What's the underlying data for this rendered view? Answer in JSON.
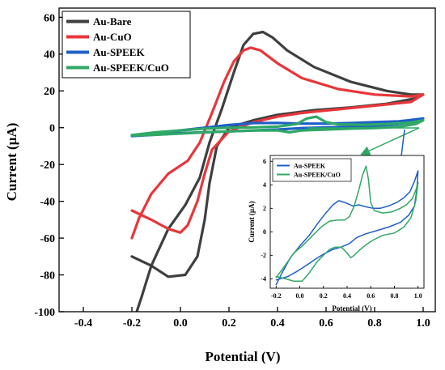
{
  "chart_data": [
    {
      "type": "line",
      "xlabel": "Potential (V)",
      "ylabel": "Current (µA)",
      "xlim": [
        -0.5,
        1.05
      ],
      "ylim": [
        -100,
        65
      ],
      "xticks": [
        "-0.4",
        "-0.2",
        "0.0",
        "0.2",
        "0.4",
        "0.6",
        "0.8",
        "1.0"
      ],
      "yticks": [
        "-100",
        "-80",
        "-60",
        "-40",
        "-20",
        "0",
        "20",
        "40",
        "60"
      ],
      "xtick_values": [
        -0.4,
        -0.2,
        0.0,
        0.2,
        0.4,
        0.6,
        0.8,
        1.0
      ],
      "ytick_values": [
        -100,
        -80,
        -60,
        -40,
        -20,
        0,
        20,
        40,
        60
      ],
      "legend_position": "top-left",
      "series": [
        {
          "name": "Au-Bare",
          "color": "#3f3f3f",
          "points": [
            [
              -0.18,
              -100
            ],
            [
              -0.16,
              -92
            ],
            [
              -0.12,
              -75
            ],
            [
              -0.05,
              -55
            ],
            [
              0.02,
              -42
            ],
            [
              0.08,
              -27
            ],
            [
              0.12,
              -8
            ],
            [
              0.17,
              10
            ],
            [
              0.22,
              30
            ],
            [
              0.26,
              45
            ],
            [
              0.3,
              51
            ],
            [
              0.34,
              52
            ],
            [
              0.38,
              49
            ],
            [
              0.44,
              42
            ],
            [
              0.55,
              33
            ],
            [
              0.7,
              25
            ],
            [
              0.85,
              20
            ],
            [
              0.95,
              18
            ],
            [
              1.0,
              18
            ],
            [
              0.97,
              16
            ],
            [
              0.85,
              13
            ],
            [
              0.7,
              11
            ],
            [
              0.55,
              9.5
            ],
            [
              0.4,
              7
            ],
            [
              0.3,
              4
            ],
            [
              0.2,
              0
            ],
            [
              0.15,
              -10
            ],
            [
              0.12,
              -30
            ],
            [
              0.1,
              -50
            ],
            [
              0.07,
              -70
            ],
            [
              0.02,
              -80
            ],
            [
              -0.05,
              -81
            ],
            [
              -0.12,
              -75
            ],
            [
              -0.2,
              -70
            ]
          ]
        },
        {
          "name": "Au-CuO",
          "color": "#e8363a",
          "points": [
            [
              -0.2,
              -60
            ],
            [
              -0.17,
              -49
            ],
            [
              -0.12,
              -36
            ],
            [
              -0.05,
              -25
            ],
            [
              0.03,
              -18
            ],
            [
              0.08,
              -8
            ],
            [
              0.13,
              8
            ],
            [
              0.18,
              25
            ],
            [
              0.22,
              36
            ],
            [
              0.26,
              42
            ],
            [
              0.29,
              43.5
            ],
            [
              0.33,
              42
            ],
            [
              0.4,
              35
            ],
            [
              0.5,
              27
            ],
            [
              0.65,
              21
            ],
            [
              0.8,
              18
            ],
            [
              0.95,
              17
            ],
            [
              1.0,
              18
            ],
            [
              0.95,
              14
            ],
            [
              0.8,
              12
            ],
            [
              0.65,
              10
            ],
            [
              0.5,
              8
            ],
            [
              0.4,
              6
            ],
            [
              0.3,
              3
            ],
            [
              0.2,
              -2
            ],
            [
              0.13,
              -12
            ],
            [
              0.1,
              -25
            ],
            [
              0.07,
              -40
            ],
            [
              0.03,
              -53
            ],
            [
              0.0,
              -57
            ],
            [
              -0.05,
              -55
            ],
            [
              -0.12,
              -50
            ],
            [
              -0.2,
              -45
            ]
          ]
        },
        {
          "name": "Au-SPEEK",
          "color": "#1f5fc8",
          "points": [
            [
              -0.2,
              -4.5
            ],
            [
              -0.1,
              -3
            ],
            [
              0.0,
              -1.5
            ],
            [
              0.1,
              0
            ],
            [
              0.2,
              1.5
            ],
            [
              0.3,
              2.5
            ],
            [
              0.4,
              2.6
            ],
            [
              0.5,
              2.2
            ],
            [
              0.6,
              2.2
            ],
            [
              0.7,
              2.5
            ],
            [
              0.8,
              3
            ],
            [
              0.9,
              3.5
            ],
            [
              0.97,
              4.5
            ],
            [
              1.0,
              5
            ],
            [
              0.97,
              3.5
            ],
            [
              0.9,
              2
            ],
            [
              0.8,
              1
            ],
            [
              0.7,
              0.5
            ],
            [
              0.6,
              0.2
            ],
            [
              0.5,
              -0.2
            ],
            [
              0.4,
              -1
            ],
            [
              0.3,
              -1.5
            ],
            [
              0.2,
              -2
            ],
            [
              0.1,
              -2.5
            ],
            [
              0.0,
              -3
            ],
            [
              -0.1,
              -3.8
            ],
            [
              -0.2,
              -4.5
            ]
          ]
        },
        {
          "name": "Au-SPEEK/CuO",
          "color": "#2fa866",
          "points": [
            [
              -0.2,
              -4
            ],
            [
              -0.1,
              -2.5
            ],
            [
              0.0,
              -1.5
            ],
            [
              0.1,
              -0.5
            ],
            [
              0.2,
              0
            ],
            [
              0.3,
              0.2
            ],
            [
              0.4,
              0.6
            ],
            [
              0.48,
              2
            ],
            [
              0.52,
              5
            ],
            [
              0.56,
              6
            ],
            [
              0.6,
              3
            ],
            [
              0.65,
              1.8
            ],
            [
              0.75,
              1.6
            ],
            [
              0.85,
              2
            ],
            [
              0.95,
              2.8
            ],
            [
              1.0,
              4
            ],
            [
              0.97,
              2
            ],
            [
              0.9,
              0.5
            ],
            [
              0.8,
              -0.2
            ],
            [
              0.7,
              -0.5
            ],
            [
              0.6,
              -1
            ],
            [
              0.5,
              -1.5
            ],
            [
              0.45,
              -2.5
            ],
            [
              0.4,
              -1.5
            ],
            [
              0.3,
              -1.5
            ],
            [
              0.2,
              -2
            ],
            [
              0.1,
              -2.5
            ],
            [
              0.0,
              -3.2
            ],
            [
              -0.1,
              -3.8
            ],
            [
              -0.2,
              -4.2
            ]
          ]
        }
      ]
    },
    {
      "type": "line",
      "xlabel": "Potential (V)",
      "ylabel": "Current (µA)",
      "xlim": [
        -0.25,
        1.05
      ],
      "ylim": [
        -4.8,
        6.5
      ],
      "xticks": [
        "-0.2",
        "0.0",
        "0.2",
        "0.4",
        "0.6",
        "0.8",
        "1.0"
      ],
      "yticks": [
        "-4",
        "-2",
        "0",
        "2",
        "4",
        "6"
      ],
      "xtick_values": [
        -0.2,
        0.0,
        0.2,
        0.4,
        0.6,
        0.8,
        1.0
      ],
      "ytick_values": [
        -4,
        -2,
        0,
        2,
        4,
        6
      ],
      "legend_position": "top-left",
      "series": [
        {
          "name": "Au-SPEEK",
          "color": "#1f5fc8",
          "points": [
            [
              -0.2,
              -4.5
            ],
            [
              -0.15,
              -3.5
            ],
            [
              -0.08,
              -2.2
            ],
            [
              0.0,
              -1.2
            ],
            [
              0.08,
              -0.3
            ],
            [
              0.15,
              0.7
            ],
            [
              0.22,
              1.6
            ],
            [
              0.28,
              2.3
            ],
            [
              0.33,
              2.65
            ],
            [
              0.38,
              2.5
            ],
            [
              0.45,
              2.2
            ],
            [
              0.5,
              2.3
            ],
            [
              0.55,
              2.15
            ],
            [
              0.62,
              2
            ],
            [
              0.68,
              2
            ],
            [
              0.75,
              2.2
            ],
            [
              0.82,
              2.5
            ],
            [
              0.88,
              2.9
            ],
            [
              0.93,
              3.4
            ],
            [
              0.97,
              4.3
            ],
            [
              1.0,
              5.2
            ],
            [
              0.99,
              3.6
            ],
            [
              0.97,
              2.2
            ],
            [
              0.92,
              1.4
            ],
            [
              0.85,
              0.8
            ],
            [
              0.75,
              0.4
            ],
            [
              0.65,
              0.1
            ],
            [
              0.55,
              -0.2
            ],
            [
              0.48,
              -0.5
            ],
            [
              0.42,
              -1
            ],
            [
              0.35,
              -1.3
            ],
            [
              0.28,
              -1.5
            ],
            [
              0.2,
              -1.9
            ],
            [
              0.12,
              -2.4
            ],
            [
              0.05,
              -2.9
            ],
            [
              -0.03,
              -3.4
            ],
            [
              -0.1,
              -3.8
            ],
            [
              -0.2,
              -4.1
            ]
          ]
        },
        {
          "name": "Au-SPEEK/CuO",
          "color": "#2fa866",
          "points": [
            [
              -0.2,
              -3.9
            ],
            [
              -0.12,
              -2.8
            ],
            [
              -0.05,
              -1.8
            ],
            [
              0.02,
              -1.2
            ],
            [
              0.1,
              -0.4
            ],
            [
              0.18,
              0.4
            ],
            [
              0.25,
              0.9
            ],
            [
              0.32,
              1
            ],
            [
              0.38,
              1
            ],
            [
              0.42,
              1.3
            ],
            [
              0.46,
              2.2
            ],
            [
              0.5,
              3.6
            ],
            [
              0.53,
              4.8
            ],
            [
              0.56,
              5.6
            ],
            [
              0.58,
              4.5
            ],
            [
              0.6,
              2.5
            ],
            [
              0.63,
              1.8
            ],
            [
              0.7,
              1.6
            ],
            [
              0.78,
              1.7
            ],
            [
              0.85,
              2
            ],
            [
              0.9,
              2.3
            ],
            [
              0.95,
              2.8
            ],
            [
              0.98,
              3.5
            ],
            [
              1.0,
              4.2
            ],
            [
              0.98,
              2.6
            ],
            [
              0.94,
              1.2
            ],
            [
              0.88,
              0.4
            ],
            [
              0.8,
              -0.1
            ],
            [
              0.7,
              -0.3
            ],
            [
              0.62,
              -0.7
            ],
            [
              0.56,
              -1.1
            ],
            [
              0.5,
              -1.6
            ],
            [
              0.46,
              -2
            ],
            [
              0.43,
              -2.2
            ],
            [
              0.4,
              -1.8
            ],
            [
              0.35,
              -1.3
            ],
            [
              0.3,
              -1.3
            ],
            [
              0.25,
              -1.5
            ],
            [
              0.2,
              -2
            ],
            [
              0.15,
              -2.5
            ],
            [
              0.08,
              -3.5
            ],
            [
              0.02,
              -4.2
            ],
            [
              -0.05,
              -4.2
            ],
            [
              -0.12,
              -4
            ],
            [
              -0.2,
              -3.8
            ]
          ]
        }
      ]
    }
  ]
}
